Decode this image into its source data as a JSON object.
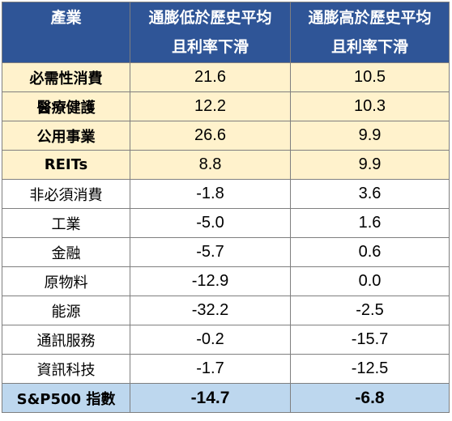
{
  "header": {
    "col1": "產業",
    "col2_line1": "通膨低於歷史平均",
    "col2_line2": "且利率下滑",
    "col3_line1": "通膨高於歷史平均",
    "col3_line2": "且利率下滑"
  },
  "rows": [
    {
      "sector": "必需性消費",
      "low": "21.6",
      "high": "10.5",
      "highlight": true
    },
    {
      "sector": "醫療健護",
      "low": "12.2",
      "high": "10.3",
      "highlight": true
    },
    {
      "sector": "公用事業",
      "low": "26.6",
      "high": "9.9",
      "highlight": true
    },
    {
      "sector": "REITs",
      "low": "8.8",
      "high": "9.9",
      "highlight": true
    },
    {
      "sector": "非必須消費",
      "low": "-1.8",
      "high": "3.6",
      "highlight": false
    },
    {
      "sector": "工業",
      "low": "-5.0",
      "high": "1.6",
      "highlight": false
    },
    {
      "sector": "金融",
      "low": "-5.7",
      "high": "0.6",
      "highlight": false
    },
    {
      "sector": "原物料",
      "low": "-12.9",
      "high": "0.0",
      "highlight": false
    },
    {
      "sector": "能源",
      "low": "-32.2",
      "high": "-2.5",
      "highlight": false
    },
    {
      "sector": "通訊服務",
      "low": "-0.2",
      "high": "-15.7",
      "highlight": false
    },
    {
      "sector": "資訊科技",
      "low": "-1.7",
      "high": "-12.5",
      "highlight": false
    }
  ],
  "total": {
    "sector": "S&P500 指數",
    "low": "-14.7",
    "high": "-6.8"
  },
  "colors": {
    "header_bg": "#2f5597",
    "highlight_bg": "#fff2cc",
    "total_bg": "#bdd7ee"
  }
}
